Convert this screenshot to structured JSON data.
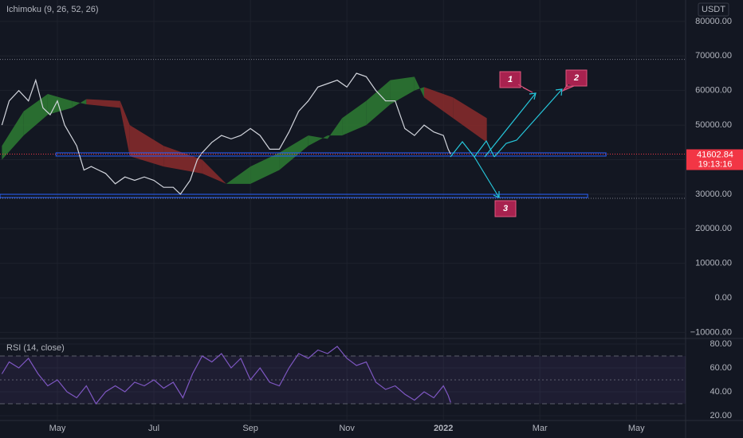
{
  "chart_data": [
    {
      "type": "line",
      "indicator_label": "Ichimoku (9, 26, 52, 26)",
      "currency": "USDT",
      "xlim": [
        2.81,
        17.02
      ],
      "ylim": [
        -11750,
        86200
      ],
      "yticks": [
        {
          "value": 80000,
          "label": "80000.00"
        },
        {
          "value": 70000,
          "label": "70000.00"
        },
        {
          "value": 60000,
          "label": "60000.00"
        },
        {
          "value": 50000,
          "label": "50000.00"
        },
        {
          "value": 40000,
          "label": "40000.00"
        },
        {
          "value": 30000,
          "label": "30000.00"
        },
        {
          "value": 20000,
          "label": "20000.00"
        },
        {
          "value": 10000,
          "label": "10000.00"
        },
        {
          "value": 0,
          "label": "0.00"
        },
        {
          "value": -10000,
          "label": "−10000.00"
        }
      ],
      "price": {
        "color": "#d1d4dc",
        "x": [
          2.85,
          3.0,
          3.2,
          3.4,
          3.55,
          3.7,
          3.85,
          4.0,
          4.15,
          4.4,
          4.55,
          4.7,
          4.85,
          5.0,
          5.2,
          5.4,
          5.6,
          5.8,
          6.0,
          6.2,
          6.4,
          6.55,
          6.75,
          6.9,
          7.0,
          7.2,
          7.4,
          7.6,
          7.8,
          8.0,
          8.2,
          8.4,
          8.6,
          8.8,
          9.0,
          9.2,
          9.4,
          9.6,
          9.8,
          10.0,
          10.2,
          10.4,
          10.6,
          10.8,
          11.0,
          11.2,
          11.4,
          11.6,
          11.8,
          12.0,
          12.1,
          12.15
        ],
        "values": [
          50000,
          57000,
          60000,
          57000,
          63000,
          55000,
          53000,
          57000,
          50000,
          44000,
          37000,
          38000,
          37000,
          36000,
          33000,
          35000,
          34000,
          35000,
          34000,
          32000,
          32000,
          30000,
          34000,
          40000,
          42000,
          45000,
          47000,
          46000,
          47000,
          49000,
          47000,
          43000,
          43000,
          48000,
          54000,
          57000,
          61000,
          62000,
          63000,
          61000,
          65000,
          64000,
          60000,
          57000,
          57000,
          49000,
          47000,
          50000,
          48000,
          47000,
          43000,
          41600
        ]
      },
      "last_price": {
        "value": 41602.84,
        "label": "41602.84",
        "countdown": "19:13:16",
        "color": "#f23645"
      },
      "cloud": {
        "up_color": "#2e7d32",
        "down_color": "#8b2c2c",
        "x": [
          2.85,
          3.3,
          3.8,
          4.3,
          4.6,
          5.3,
          5.5,
          6.2,
          7.0,
          7.5,
          8.0,
          8.6,
          9.2,
          9.6,
          9.9,
          10.4,
          10.9,
          11.4,
          11.6,
          12.2,
          12.9
        ],
        "span_a": [
          44000,
          54000,
          59000,
          57000,
          56000,
          55000,
          41000,
          38000,
          36000,
          33000,
          38000,
          42000,
          47000,
          46000,
          52000,
          57000,
          63000,
          64000,
          58000,
          52000,
          45000
        ],
        "span_b": [
          40000,
          47000,
          53000,
          55000,
          57500,
          57000,
          50000,
          44000,
          40000,
          33000,
          33000,
          37000,
          44000,
          47000,
          47000,
          50000,
          56000,
          60000,
          61000,
          58000,
          52000
        ]
      },
      "levels": [
        {
          "value": 41500,
          "x": [
            3.97,
            15.37
          ],
          "color": "#2962ff"
        },
        {
          "value": 29500,
          "x": [
            2.81,
            14.99
          ],
          "color": "#2962ff"
        }
      ],
      "high_low": [
        69000,
        28800
      ],
      "annotations": [
        "1",
        "2",
        "3"
      ]
    },
    {
      "type": "line",
      "indicator_label": "RSI (14, close)",
      "xlim": [
        2.81,
        17.02
      ],
      "ylim": [
        16,
        84.7
      ],
      "yticks": [
        {
          "value": 80,
          "label": "80.00"
        },
        {
          "value": 60,
          "label": "60.00"
        },
        {
          "value": 40,
          "label": "40.00"
        },
        {
          "value": 20,
          "label": "20.00"
        }
      ],
      "bands": [
        70,
        50,
        30
      ],
      "xticks": [
        {
          "value": 4,
          "label": "May"
        },
        {
          "value": 6,
          "label": "Jul"
        },
        {
          "value": 8,
          "label": "Sep"
        },
        {
          "value": 10,
          "label": "Nov"
        },
        {
          "value": 12,
          "label": "2022"
        },
        {
          "value": 14,
          "label": "Mar"
        },
        {
          "value": 16,
          "label": "May"
        }
      ],
      "rsi": {
        "color": "#7e57c2",
        "x": [
          2.85,
          3.0,
          3.2,
          3.4,
          3.6,
          3.8,
          4.0,
          4.2,
          4.4,
          4.6,
          4.8,
          5.0,
          5.2,
          5.4,
          5.6,
          5.8,
          6.0,
          6.2,
          6.4,
          6.6,
          6.8,
          7.0,
          7.2,
          7.4,
          7.6,
          7.8,
          8.0,
          8.2,
          8.4,
          8.6,
          8.8,
          9.0,
          9.2,
          9.4,
          9.6,
          9.8,
          10.0,
          10.2,
          10.4,
          10.6,
          10.8,
          11.0,
          11.2,
          11.4,
          11.6,
          11.8,
          12.0,
          12.1,
          12.15
        ],
        "values": [
          55,
          65,
          60,
          68,
          55,
          45,
          50,
          40,
          35,
          45,
          30,
          40,
          45,
          40,
          48,
          45,
          50,
          43,
          48,
          35,
          55,
          70,
          65,
          72,
          60,
          68,
          50,
          60,
          48,
          45,
          60,
          72,
          68,
          75,
          72,
          78,
          68,
          62,
          65,
          48,
          42,
          45,
          38,
          33,
          40,
          35,
          45,
          37,
          31
        ]
      }
    }
  ]
}
